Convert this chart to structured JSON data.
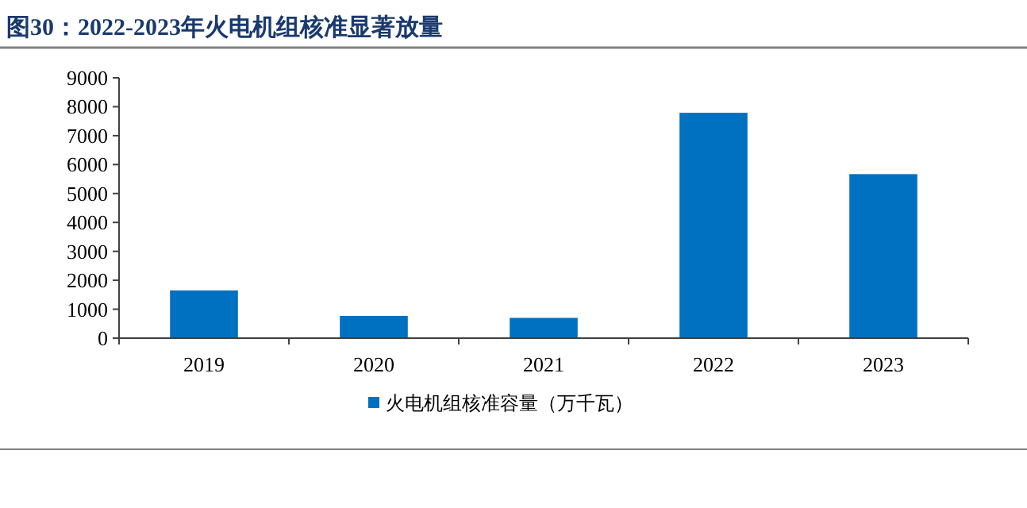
{
  "chart_data": {
    "type": "bar",
    "title": "图30：2022-2023年火电机组核准显著放量",
    "categories": [
      "2019",
      "2020",
      "2021",
      "2022",
      "2023"
    ],
    "series": [
      {
        "name": "火电机组核准容量（万千瓦）",
        "color": "#0070c0",
        "values": [
          1650,
          770,
          700,
          7790,
          5670
        ]
      }
    ],
    "ylim": [
      0,
      9000
    ],
    "yticks": [
      0,
      1000,
      2000,
      3000,
      4000,
      5000,
      6000,
      7000,
      8000,
      9000
    ],
    "grid": false,
    "legend": "bottom"
  }
}
